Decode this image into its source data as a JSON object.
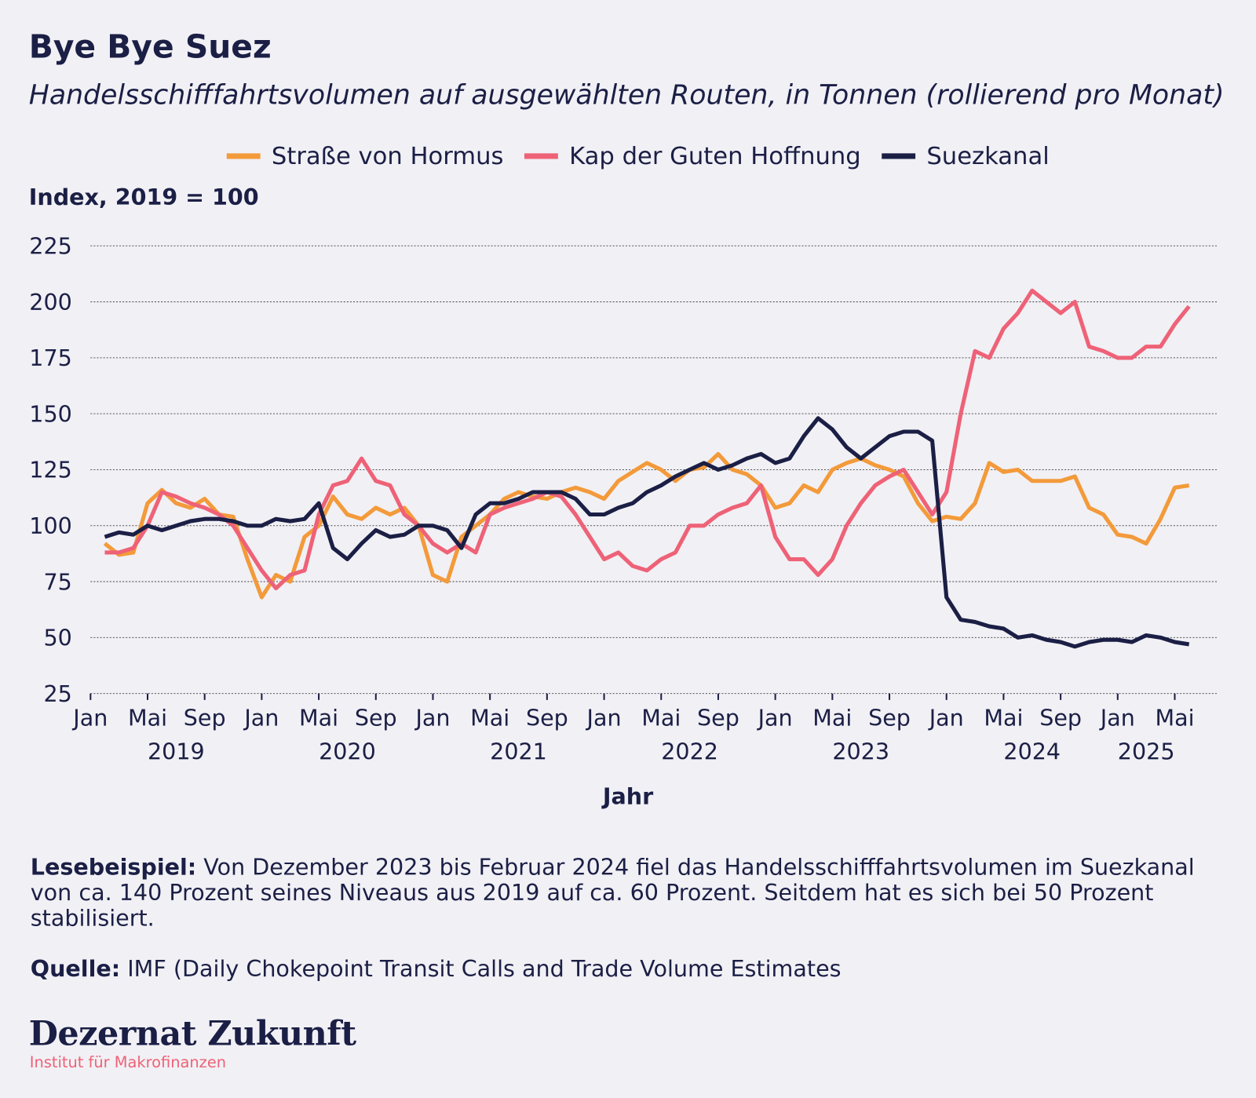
{
  "chart_data": {
    "type": "line",
    "title": "Bye Bye Suez",
    "subtitle": "Handelsschifffahrtsvolumen auf ausgewählten Routen, in Tonnen (rollierend pro Monat)",
    "y_label": "Index, 2019 = 100",
    "x_label": "Jahr",
    "x": [
      "2019-02",
      "2019-03",
      "2019-04",
      "2019-05",
      "2019-06",
      "2019-07",
      "2019-08",
      "2019-09",
      "2019-10",
      "2019-11",
      "2019-12",
      "2020-01",
      "2020-02",
      "2020-03",
      "2020-04",
      "2020-05",
      "2020-06",
      "2020-07",
      "2020-08",
      "2020-09",
      "2020-10",
      "2020-11",
      "2020-12",
      "2021-01",
      "2021-02",
      "2021-03",
      "2021-04",
      "2021-05",
      "2021-06",
      "2021-07",
      "2021-08",
      "2021-09",
      "2021-10",
      "2021-11",
      "2021-12",
      "2022-01",
      "2022-02",
      "2022-03",
      "2022-04",
      "2022-05",
      "2022-06",
      "2022-07",
      "2022-08",
      "2022-09",
      "2022-10",
      "2022-11",
      "2022-12",
      "2023-01",
      "2023-02",
      "2023-03",
      "2023-04",
      "2023-05",
      "2023-06",
      "2023-07",
      "2023-08",
      "2023-09",
      "2023-10",
      "2023-11",
      "2023-12",
      "2024-01",
      "2024-02",
      "2024-03",
      "2024-04",
      "2024-05",
      "2024-06",
      "2024-07",
      "2024-08",
      "2024-09",
      "2024-10",
      "2024-11",
      "2024-12",
      "2025-01",
      "2025-02",
      "2025-03",
      "2025-04",
      "2025-05",
      "2025-06"
    ],
    "series": [
      {
        "name": "Straße von Hormus",
        "color": "#f39a3a",
        "values": [
          92,
          87,
          88,
          110,
          116,
          110,
          108,
          112,
          105,
          104,
          85,
          68,
          78,
          75,
          95,
          100,
          113,
          105,
          103,
          108,
          105,
          108,
          100,
          78,
          75,
          95,
          100,
          105,
          112,
          115,
          113,
          112,
          115,
          117,
          115,
          112,
          120,
          124,
          128,
          125,
          120,
          125,
          126,
          132,
          125,
          123,
          118,
          108,
          110,
          118,
          115,
          125,
          128,
          130,
          127,
          125,
          122,
          110,
          102,
          104,
          103,
          110,
          128,
          124,
          125,
          120,
          120,
          120,
          122,
          108,
          105,
          96,
          95,
          92,
          103,
          117,
          118
        ]
      },
      {
        "name": "Kap der Guten Hoffnung",
        "color": "#ee6277",
        "values": [
          88,
          88,
          90,
          100,
          115,
          113,
          110,
          108,
          105,
          100,
          90,
          80,
          72,
          78,
          80,
          105,
          118,
          120,
          130,
          120,
          118,
          105,
          100,
          92,
          88,
          92,
          88,
          105,
          108,
          110,
          112,
          115,
          113,
          105,
          95,
          85,
          88,
          82,
          80,
          85,
          88,
          100,
          100,
          105,
          108,
          110,
          118,
          95,
          85,
          85,
          78,
          85,
          100,
          110,
          118,
          122,
          125,
          115,
          105,
          115,
          150,
          178,
          175,
          188,
          195,
          205,
          200,
          195,
          200,
          180,
          178,
          175,
          175,
          180,
          180,
          190,
          198
        ]
      },
      {
        "name": "Suezkanal",
        "color": "#1b1f45",
        "values": [
          95,
          97,
          96,
          100,
          98,
          100,
          102,
          103,
          103,
          102,
          100,
          100,
          103,
          102,
          103,
          110,
          90,
          85,
          92,
          98,
          95,
          96,
          100,
          100,
          98,
          90,
          105,
          110,
          110,
          112,
          115,
          115,
          115,
          112,
          105,
          105,
          108,
          110,
          115,
          118,
          122,
          125,
          128,
          125,
          127,
          130,
          132,
          128,
          130,
          140,
          148,
          143,
          135,
          130,
          135,
          140,
          142,
          142,
          138,
          68,
          58,
          57,
          55,
          54,
          50,
          51,
          49,
          48,
          46,
          48,
          49,
          49,
          48,
          51,
          50,
          48,
          47
        ]
      }
    ],
    "xlim": [
      "2019-01",
      "2025-08"
    ],
    "xticks": [
      {
        "value": "2019-01",
        "label": "Jan"
      },
      {
        "value": "2019-05",
        "label": "Mai"
      },
      {
        "value": "2019-09",
        "label": "Sep"
      },
      {
        "value": "2020-01",
        "label": "Jan"
      },
      {
        "value": "2020-05",
        "label": "Mai"
      },
      {
        "value": "2020-09",
        "label": "Sep"
      },
      {
        "value": "2021-01",
        "label": "Jan"
      },
      {
        "value": "2021-05",
        "label": "Mai"
      },
      {
        "value": "2021-09",
        "label": "Sep"
      },
      {
        "value": "2022-01",
        "label": "Jan"
      },
      {
        "value": "2022-05",
        "label": "Mai"
      },
      {
        "value": "2022-09",
        "label": "Sep"
      },
      {
        "value": "2023-01",
        "label": "Jan"
      },
      {
        "value": "2023-05",
        "label": "Mai"
      },
      {
        "value": "2023-09",
        "label": "Sep"
      },
      {
        "value": "2024-01",
        "label": "Jan"
      },
      {
        "value": "2024-05",
        "label": "Mai"
      },
      {
        "value": "2024-09",
        "label": "Sep"
      },
      {
        "value": "2025-01",
        "label": "Jan"
      },
      {
        "value": "2025-05",
        "label": "Mai"
      }
    ],
    "year_labels": [
      {
        "value": "2019-07",
        "label": "2019"
      },
      {
        "value": "2020-07",
        "label": "2020"
      },
      {
        "value": "2021-07",
        "label": "2021"
      },
      {
        "value": "2022-07",
        "label": "2022"
      },
      {
        "value": "2023-07",
        "label": "2023"
      },
      {
        "value": "2024-07",
        "label": "2024"
      },
      {
        "value": "2025-03",
        "label": "2025"
      }
    ],
    "ylim": [
      25,
      225
    ],
    "yticks": [
      25,
      50,
      75,
      100,
      125,
      150,
      175,
      200,
      225
    ],
    "grid": true,
    "legend": "top"
  },
  "notes": [
    {
      "label": "Lesebeispiel:",
      "text": "Von Dezember 2023 bis Februar 2024 fiel das Handelsschifffahrtsvolumen im Suezkanal von ca. 140 Prozent seines Niveaus aus 2019 auf ca. 60 Prozent. Seitdem hat es sich bei 50 Prozent stabilisiert."
    },
    {
      "label": "Quelle:",
      "text": "IMF (Daily Chokepoint Transit Calls and Trade Volume Estimates"
    }
  ],
  "brand": {
    "name": "Dezernat Zukunft",
    "tagline": "Institut für Makrofinanzen"
  }
}
